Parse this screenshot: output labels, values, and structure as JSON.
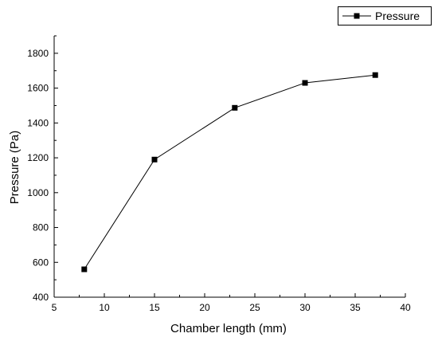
{
  "chart_data": {
    "type": "line",
    "title": "",
    "xlabel": "Chamber length (mm)",
    "ylabel": "Pressure (Pa)",
    "xlim": [
      5,
      40
    ],
    "ylim": [
      400,
      1900
    ],
    "x_ticks": [
      5,
      10,
      15,
      20,
      25,
      30,
      35,
      40
    ],
    "y_ticks": [
      400,
      600,
      800,
      1000,
      1200,
      1400,
      1600,
      1800
    ],
    "grid": false,
    "legend_position": "top-right",
    "series": [
      {
        "name": "Pressure",
        "x": [
          8,
          15,
          23,
          30,
          37
        ],
        "y": [
          560,
          1190,
          1487,
          1630,
          1675
        ],
        "marker": "square",
        "color": "#000000"
      }
    ]
  }
}
